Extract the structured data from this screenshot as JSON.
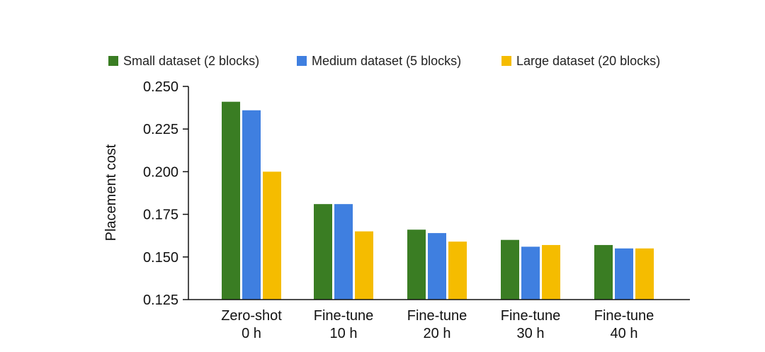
{
  "chart_data": {
    "type": "bar",
    "title": "",
    "xlabel": "",
    "ylabel": "Placement cost",
    "ylim": [
      0.125,
      0.25
    ],
    "yticks": [
      "0.125",
      "0.150",
      "0.175",
      "0.200",
      "0.225",
      "0.250"
    ],
    "yticks_values": [
      0.125,
      0.15,
      0.175,
      0.2,
      0.225,
      0.25
    ],
    "categories": [
      [
        "Zero-shot",
        "0 h"
      ],
      [
        "Fine-tune",
        "10 h"
      ],
      [
        "Fine-tune",
        "20 h"
      ],
      [
        "Fine-tune",
        "30 h"
      ],
      [
        "Fine-tune",
        "40 h"
      ]
    ],
    "series": [
      {
        "name": "Small dataset (2 blocks)",
        "color": "#3a7d23",
        "values": [
          0.241,
          0.181,
          0.166,
          0.16,
          0.157
        ]
      },
      {
        "name": "Medium dataset (5 blocks)",
        "color": "#3f7fe0",
        "values": [
          0.236,
          0.181,
          0.164,
          0.156,
          0.155
        ]
      },
      {
        "name": "Large dataset (20 blocks)",
        "color": "#f5bc00",
        "values": [
          0.2,
          0.165,
          0.159,
          0.157,
          0.155
        ]
      }
    ],
    "grid": false,
    "legend_position": "top"
  }
}
